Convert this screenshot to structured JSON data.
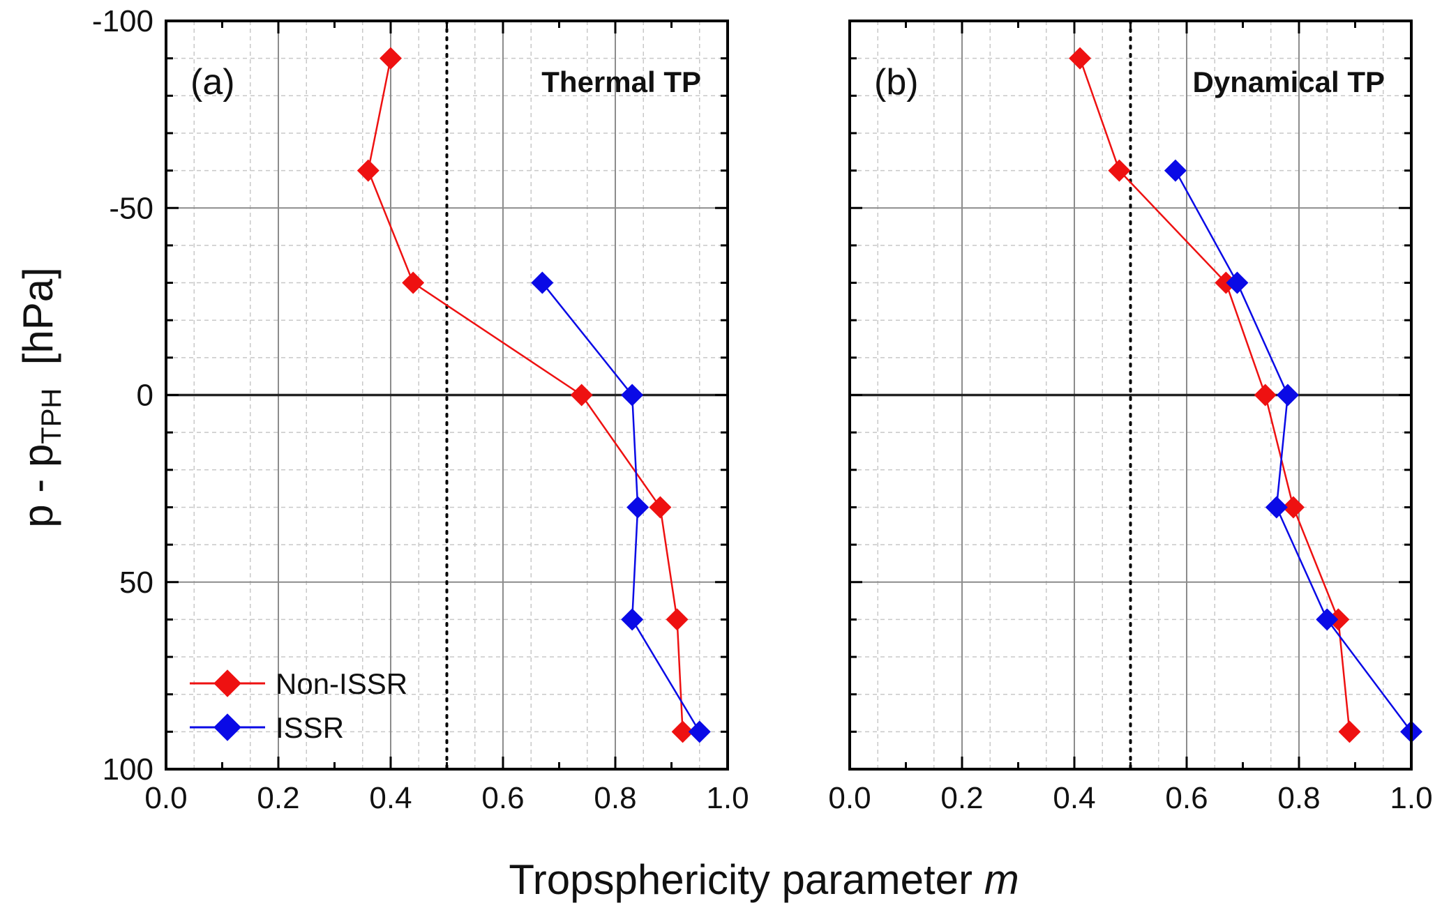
{
  "figure": {
    "xlabel_text": "Tropsphericity parameter ",
    "xlabel_var": "m",
    "ylabel_main": "p - p",
    "ylabel_sub": "TPH",
    "ylabel_unit": "  [hPa]"
  },
  "legend": {
    "items": [
      {
        "label": "Non-ISSR",
        "color": "#ee1111"
      },
      {
        "label": "ISSR",
        "color": "#0a0ae6"
      }
    ]
  },
  "chart_data": [
    {
      "type": "line",
      "panel_label": "(a)",
      "title": "Thermal TP",
      "xlim": [
        0.0,
        1.0
      ],
      "ylim": [
        -100,
        100
      ],
      "y_inverted": true,
      "xticks": [
        "0.0",
        "0.2",
        "0.4",
        "0.6",
        "0.8",
        "1.0"
      ],
      "yticks": [
        "-100",
        "-50",
        "0",
        "50",
        "100"
      ],
      "reference_lines": {
        "x_dotted": 0.5,
        "y_solid": 0
      },
      "grid": true,
      "legend_position": "bottom-left",
      "series": [
        {
          "name": "Non-ISSR",
          "color": "#ee1111",
          "x": [
            0.4,
            0.36,
            0.44,
            0.74,
            0.88,
            0.91,
            0.92
          ],
          "y": [
            -90,
            -60,
            -30,
            0,
            30,
            60,
            90
          ]
        },
        {
          "name": "ISSR",
          "color": "#0a0ae6",
          "x": [
            0.67,
            0.83,
            0.84,
            0.83,
            0.95
          ],
          "y": [
            -30,
            0,
            30,
            60,
            90
          ]
        }
      ]
    },
    {
      "type": "line",
      "panel_label": "(b)",
      "title": "Dynamical TP",
      "xlim": [
        0.0,
        1.0
      ],
      "ylim": [
        -100,
        100
      ],
      "y_inverted": true,
      "xticks": [
        "0.0",
        "0.2",
        "0.4",
        "0.6",
        "0.8",
        "1.0"
      ],
      "yticks": [
        "-100",
        "-50",
        "0",
        "50",
        "100"
      ],
      "reference_lines": {
        "x_dotted": 0.5,
        "y_solid": 0
      },
      "grid": true,
      "series": [
        {
          "name": "Non-ISSR",
          "color": "#ee1111",
          "x": [
            0.41,
            0.48,
            0.67,
            0.74,
            0.79,
            0.87,
            0.89
          ],
          "y": [
            -90,
            -60,
            -30,
            0,
            30,
            60,
            90
          ]
        },
        {
          "name": "ISSR",
          "color": "#0a0ae6",
          "x": [
            0.58,
            0.69,
            0.78,
            0.76,
            0.85,
            1.0
          ],
          "y": [
            -60,
            -30,
            0,
            30,
            60,
            90
          ]
        }
      ]
    }
  ]
}
